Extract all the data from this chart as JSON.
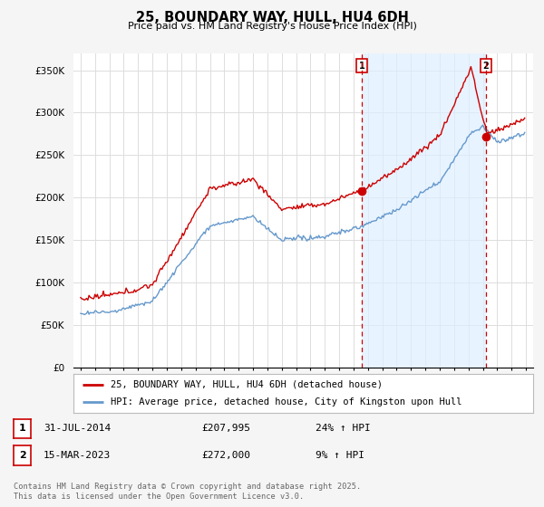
{
  "title": "25, BOUNDARY WAY, HULL, HU4 6DH",
  "subtitle": "Price paid vs. HM Land Registry's House Price Index (HPI)",
  "ylabel_ticks": [
    "£0",
    "£50K",
    "£100K",
    "£150K",
    "£200K",
    "£250K",
    "£300K",
    "£350K"
  ],
  "ytick_values": [
    0,
    50000,
    100000,
    150000,
    200000,
    250000,
    300000,
    350000
  ],
  "ylim": [
    0,
    370000
  ],
  "xlim_start": 1994.5,
  "xlim_end": 2026.5,
  "red_color": "#cc0000",
  "blue_color": "#6699cc",
  "shade_color": "#ddeeff",
  "marker1_x": 2014.58,
  "marker1_y": 207995,
  "marker2_x": 2023.21,
  "marker2_y": 272000,
  "legend_line1": "25, BOUNDARY WAY, HULL, HU4 6DH (detached house)",
  "legend_line2": "HPI: Average price, detached house, City of Kingston upon Hull",
  "ann1_date": "31-JUL-2014",
  "ann1_price": "£207,995",
  "ann1_hpi": "24% ↑ HPI",
  "ann2_date": "15-MAR-2023",
  "ann2_price": "£272,000",
  "ann2_hpi": "9% ↑ HPI",
  "footer": "Contains HM Land Registry data © Crown copyright and database right 2025.\nThis data is licensed under the Open Government Licence v3.0.",
  "bg_color": "#f5f5f5",
  "plot_bg": "#ffffff",
  "grid_color": "#dddddd"
}
